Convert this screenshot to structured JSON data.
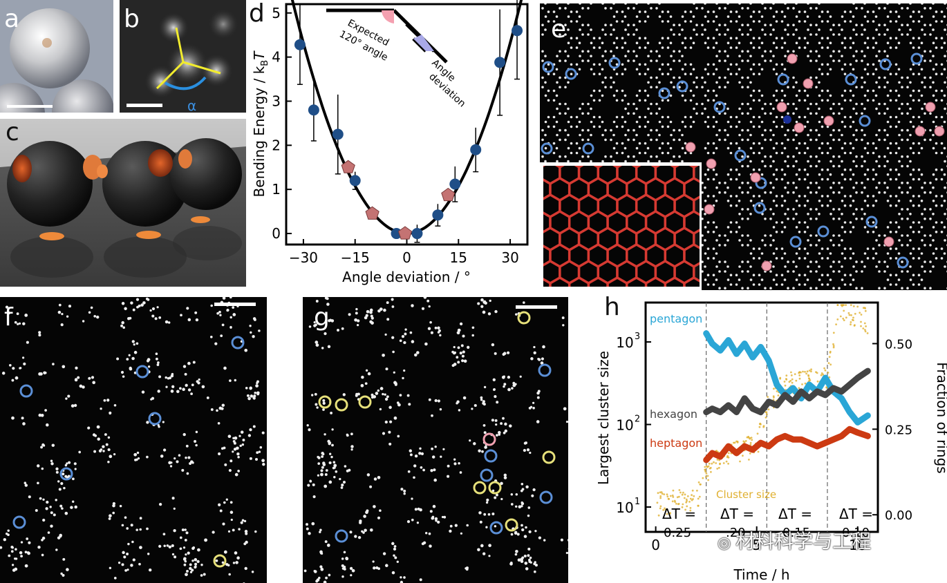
{
  "panels": {
    "a": "a",
    "b": "b",
    "c": "c",
    "d": "d",
    "e": "e",
    "f": "f",
    "g": "g",
    "h": "h"
  },
  "panel_b": {
    "angle_symbol": "α"
  },
  "chart_d": {
    "ylabel_main": "Bending Energy / k",
    "ylabel_sub": "B",
    "ylabel_tail": "T",
    "xlabel": "Angle deviation / °",
    "annotation_expected_1": "Expected",
    "annotation_expected_2": "120° angle",
    "annotation_angle_1": "Angle",
    "annotation_angle_2": "deviation",
    "xticks": [
      "−30",
      "−15",
      "0",
      "15",
      "30"
    ],
    "yticks": [
      "0",
      "1",
      "2",
      "3",
      "4",
      "5"
    ]
  },
  "chart_h": {
    "ylabel_left": "Largest cluster size",
    "ylabel_right": "Fraction of rings",
    "xlabel": "Time / h",
    "left_ticks": [
      "10",
      "10",
      "10"
    ],
    "left_exps": [
      "1",
      "2",
      "3"
    ],
    "right_ticks": [
      "0.00",
      "0.25",
      "0.50"
    ],
    "xticks": [
      "0",
      "5",
      "10"
    ],
    "series_pentagon": "pentagon",
    "series_hexagon": "hexagon",
    "series_heptagon": "heptagon",
    "series_cluster": "Cluster size",
    "dT_label": "ΔT =",
    "dT_values": [
      "0.25",
      ".20",
      "0.15",
      "0.10"
    ]
  },
  "watermark": "材料科学与工程",
  "colors": {
    "pentagon": "#2aa6d6",
    "hexagon": "#444444",
    "heptagon": "#cc3a12",
    "cluster": "#e0b030",
    "marker_blue": "#1f4e87",
    "marker_red": "#c47373",
    "ring_blue": "#5b8fd6",
    "ring_pink": "#f0a0b0",
    "ring_yellow": "#e6e07a"
  },
  "chart_data": [
    {
      "type": "scatter",
      "title": "",
      "xlabel": "Angle deviation / °",
      "ylabel": "Bending Energy / kBT",
      "xlim": [
        -35,
        35
      ],
      "ylim": [
        -0.25,
        5.2
      ],
      "series": [
        {
          "marker": "circle",
          "color": "#1f4e87",
          "x": [
            -31,
            -27,
            -20,
            -15,
            -3,
            3,
            9,
            14,
            20,
            27,
            32
          ],
          "y": [
            4.28,
            2.8,
            2.25,
            1.2,
            0.0,
            0.0,
            0.42,
            1.12,
            1.9,
            3.88,
            4.6
          ],
          "err": [
            0.9,
            0.7,
            0.9,
            0.2,
            0.05,
            0.2,
            0.25,
            0.4,
            0.5,
            1.2,
            1.1
          ]
        },
        {
          "marker": "pentagon",
          "color": "#c47373",
          "x": [
            -17,
            -10,
            -0.5,
            12
          ],
          "y": [
            1.5,
            0.45,
            0.0,
            0.87
          ]
        }
      ],
      "fit": {
        "type": "parabola",
        "coefficient": 0.0048
      }
    },
    {
      "type": "line",
      "title": "",
      "xlabel": "Time / h",
      "ylabel_left": "Largest cluster size",
      "ylabel_right": "Fraction of rings",
      "xlim": [
        -0.5,
        11
      ],
      "left_scale": "log",
      "left_ylim": [
        5,
        3000
      ],
      "right_ylim": [
        -0.05,
        0.62
      ],
      "dividers": [
        2.5,
        5.5,
        8.5
      ],
      "series": [
        {
          "name": "pentagon",
          "axis": "right",
          "x": [
            2.5,
            2.8,
            3.2,
            3.6,
            4.0,
            4.4,
            4.8,
            5.2,
            5.6,
            6.0,
            6.4,
            6.8,
            7.2,
            7.6,
            8.0,
            8.4,
            8.8,
            9.2,
            9.6,
            10.0,
            10.5
          ],
          "y": [
            0.53,
            0.5,
            0.48,
            0.51,
            0.47,
            0.5,
            0.46,
            0.49,
            0.45,
            0.38,
            0.35,
            0.37,
            0.34,
            0.38,
            0.36,
            0.4,
            0.36,
            0.34,
            0.3,
            0.27,
            0.29
          ]
        },
        {
          "name": "hexagon",
          "axis": "right",
          "x": [
            2.5,
            2.8,
            3.2,
            3.6,
            4.0,
            4.4,
            4.8,
            5.2,
            5.6,
            6.0,
            6.4,
            6.8,
            7.2,
            7.6,
            8.0,
            8.4,
            8.8,
            9.2,
            9.6,
            10.0,
            10.5
          ],
          "y": [
            0.3,
            0.31,
            0.3,
            0.32,
            0.3,
            0.34,
            0.31,
            0.3,
            0.33,
            0.32,
            0.35,
            0.33,
            0.36,
            0.34,
            0.36,
            0.35,
            0.37,
            0.36,
            0.38,
            0.4,
            0.42
          ]
        },
        {
          "name": "heptagon",
          "axis": "right",
          "x": [
            2.5,
            2.8,
            3.2,
            3.6,
            4.0,
            4.4,
            4.8,
            5.2,
            5.6,
            6.0,
            6.4,
            6.8,
            7.2,
            7.6,
            8.0,
            8.4,
            8.8,
            9.2,
            9.6,
            10.0,
            10.5
          ],
          "y": [
            0.16,
            0.18,
            0.17,
            0.2,
            0.18,
            0.2,
            0.19,
            0.21,
            0.2,
            0.22,
            0.23,
            0.22,
            0.22,
            0.21,
            0.2,
            0.21,
            0.22,
            0.23,
            0.25,
            0.24,
            0.23
          ]
        },
        {
          "name": "Cluster size",
          "axis": "left",
          "x": [
            0,
            0.5,
            1,
            1.5,
            2,
            2.5,
            3,
            3.5,
            4,
            4.5,
            5,
            5.5,
            6,
            6.5,
            7,
            7.5,
            8,
            8.5,
            9,
            9.5,
            10,
            10.5
          ],
          "y": [
            11,
            11,
            12,
            11,
            12,
            25,
            35,
            40,
            45,
            50,
            55,
            150,
            250,
            300,
            320,
            330,
            340,
            350,
            2500,
            2300,
            2000,
            1800
          ]
        }
      ]
    }
  ]
}
